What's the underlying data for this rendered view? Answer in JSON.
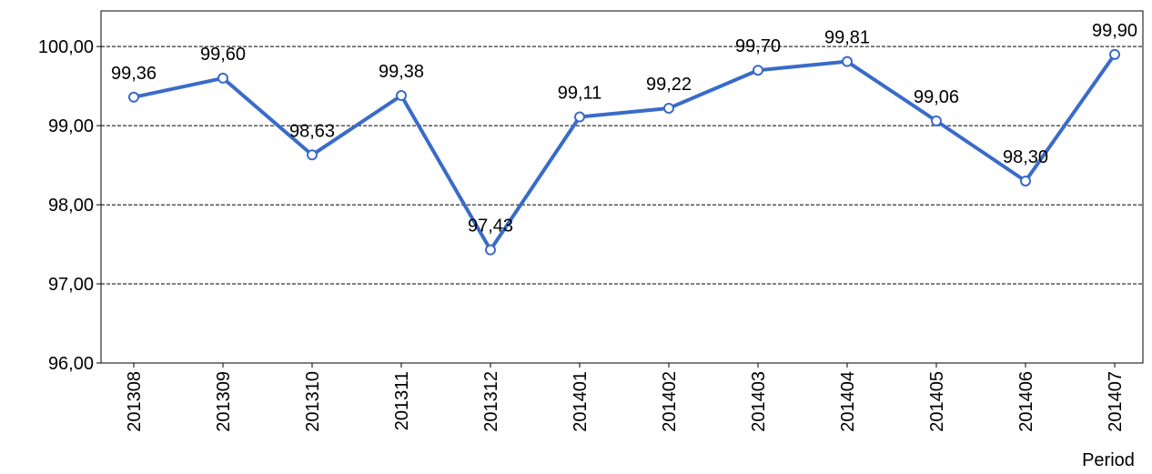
{
  "chart_data": {
    "type": "line",
    "x_label": "Period",
    "categories": [
      "201308",
      "201309",
      "201310",
      "201311",
      "201312",
      "201401",
      "201402",
      "201403",
      "201404",
      "201405",
      "201406",
      "201407"
    ],
    "series": [
      {
        "color": "#3a6bc9",
        "values": [
          99.36,
          99.6,
          98.63,
          99.38,
          97.43,
          99.11,
          99.22,
          99.7,
          99.81,
          99.06,
          98.3,
          99.9
        ],
        "value_labels": [
          "99,36",
          "99,60",
          "98,63",
          "99,38",
          "97,43",
          "99,11",
          "99,22",
          "99,70",
          "99,81",
          "99,06",
          "98,30",
          "99,90"
        ]
      }
    ],
    "ylim": [
      96,
      100.45
    ],
    "yticks": [
      {
        "value": 96,
        "label": "96,00"
      },
      {
        "value": 97,
        "label": "97,00"
      },
      {
        "value": 98,
        "label": "98,00"
      },
      {
        "value": 99,
        "label": "99,00"
      },
      {
        "value": 100,
        "label": "100,00"
      }
    ],
    "grid": true
  }
}
